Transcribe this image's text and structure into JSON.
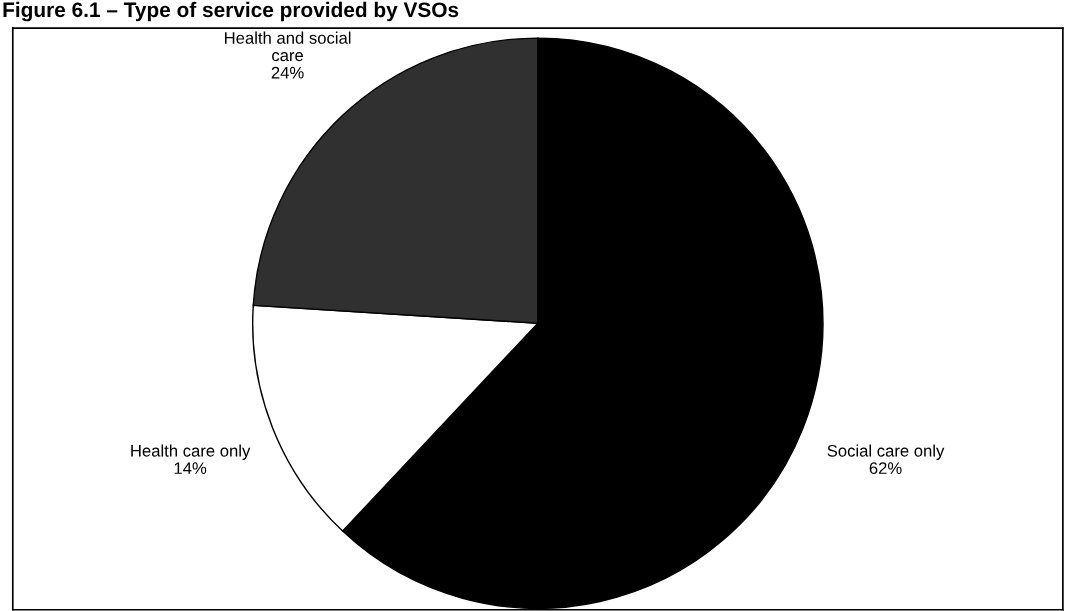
{
  "chart_data": {
    "type": "pie",
    "title": "Figure 6.1 – Type of service provided by VSOs",
    "categories": [
      "Social care only",
      "Health care only",
      "Health and social\ncare"
    ],
    "values": [
      62,
      14,
      24
    ],
    "colors": [
      "#000000",
      "#ffffff",
      "#303030"
    ],
    "value_labels": [
      "62%",
      "14%",
      "24%"
    ]
  }
}
